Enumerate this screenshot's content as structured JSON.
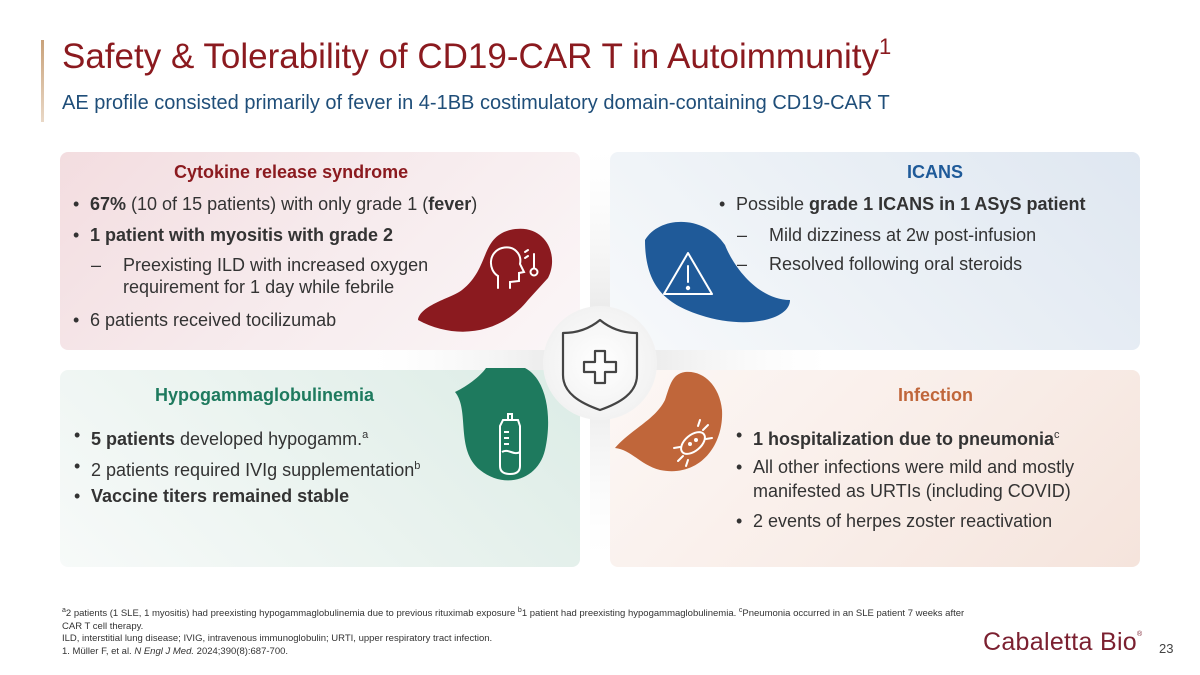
{
  "header": {
    "title": "Safety & Tolerability of CD19-CAR T in Autoimmunity",
    "title_sup": "1",
    "subtitle": "AE profile consisted primarily of fever in 4-1BB costimulatory domain-containing CD19-CAR T"
  },
  "colors": {
    "crs": "#8b1a1f",
    "icans": "#1f5a99",
    "hypo": "#1e7a5e",
    "infection": "#c0663a"
  },
  "icons": {
    "crs": "head-fever-thermometer-icon",
    "icans": "warning-triangle-icon",
    "hypo": "iv-bag-icon",
    "infection": "bacteria-icon",
    "center": "shield-plus-icon"
  },
  "panels": {
    "crs": {
      "title": "Cytokine release syndrome",
      "b1_bold": "67%",
      "b1_text": " (10 of 15 patients) with only grade 1 (",
      "b1_bold2": "fever",
      "b1_end": ")",
      "b2_bold": "1 patient with myositis with grade 2",
      "sub1": "Preexisting ILD with increased oxygen requirement for 1 day while febrile",
      "b3": "6 patients received tocilizumab"
    },
    "icans": {
      "title": "ICANS",
      "b1_text": "Possible ",
      "b1_bold": "grade 1 ICANS in 1 ASyS patient",
      "sub1": "Mild dizziness at 2w post-infusion",
      "sub2": "Resolved following oral steroids"
    },
    "hypo": {
      "title": "Hypogammaglobulinemia",
      "b1_bold": "5 patients",
      "b1_text": " developed hypogamm.",
      "b1_sup": "a",
      "b2_text": "2 patients required IVIg supplementation",
      "b2_sup": "b",
      "b3_bold": "Vaccine titers remained stable"
    },
    "infection": {
      "title": "Infection",
      "b1_bold": "1 hospitalization due to pneumonia",
      "b1_sup": "c",
      "b2": "All other infections were mild and mostly manifested as URTIs (including COVID)",
      "b3": "2 events of herpes zoster reactivation"
    }
  },
  "bullet_char": "•",
  "dash_char": "–",
  "footnotes": {
    "line1_sup_a": "a",
    "line1_a": "2 patients (1 SLE, 1 myositis) had preexisting hypogammaglobulinemia due to previous rituximab exposure ",
    "line1_sup_b": "b",
    "line1_b": "1 patient had preexisting hypogammaglobulinemia. ",
    "line1_sup_c": "c",
    "line1_c": "Pneumonia occurred in an SLE patient 7 weeks after CAR T cell therapy.",
    "line2": "ILD, interstitial lung disease; IVIG, intravenous immunoglobulin; URTI, upper respiratory tract infection.",
    "line3_a": "1. Müller F, et al. ",
    "line3_journal": "N Engl J Med.",
    "line3_b": " 2024;390(8):687-700."
  },
  "logo": {
    "text": "Cabaletta Bio",
    "mark": "®"
  },
  "page_number": "23"
}
